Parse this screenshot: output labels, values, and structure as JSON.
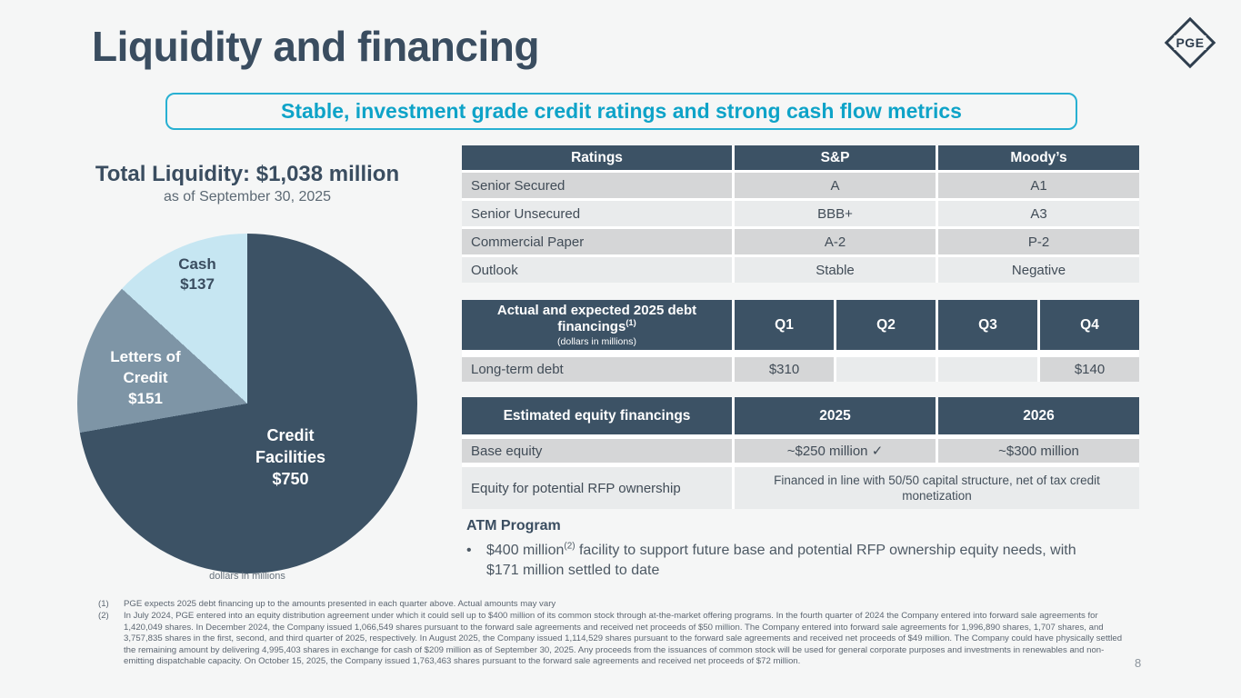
{
  "slide": {
    "title": "Liquidity and financing",
    "banner": "Stable, investment grade credit ratings and strong cash flow metrics",
    "logo_text": "PGE",
    "page_number": "8"
  },
  "liquidity": {
    "title": "Total Liquidity: $1,038 million",
    "subtitle": "as of September 30, 2025",
    "caption": "dollars in millions"
  },
  "chart_data": {
    "type": "pie",
    "title": "Total Liquidity: $1,038 million",
    "units": "dollars in millions",
    "total": 1038,
    "slices": [
      {
        "label": "Credit Facilities",
        "value": 750,
        "display": "$750",
        "label_lines": [
          "Credit",
          "Facilities"
        ],
        "color": "#3c5265"
      },
      {
        "label": "Letters of Credit",
        "value": 151,
        "display": "$151",
        "label_lines": [
          "Letters of",
          "Credit"
        ],
        "color": "#7e95a6"
      },
      {
        "label": "Cash",
        "value": 137,
        "display": "$137",
        "label_lines": [
          "Cash"
        ],
        "color": "#c6e6f2"
      }
    ]
  },
  "ratings_table": {
    "headers": [
      "Ratings",
      "S&P",
      "Moody’s"
    ],
    "rows": [
      [
        "Senior Secured",
        "A",
        "A1"
      ],
      [
        "Senior Unsecured",
        "BBB+",
        "A3"
      ],
      [
        "Commercial Paper",
        "A-2",
        "P-2"
      ],
      [
        "Outlook",
        "Stable",
        "Negative"
      ]
    ]
  },
  "debt_table": {
    "title": "Actual and expected 2025 debt financings",
    "title_sup": "(1)",
    "subtitle": "(dollars in millions)",
    "quarters": [
      "Q1",
      "Q2",
      "Q3",
      "Q4"
    ],
    "row_label": "Long-term debt",
    "values": [
      "$310",
      "",
      "",
      "$140"
    ]
  },
  "equity_table": {
    "headers": [
      "Estimated equity financings",
      "2025",
      "2026"
    ],
    "base_label": "Base equity",
    "base_2025": "~$250 million ✓",
    "base_2026": "~$300 million",
    "rfp_label": "Equity for potential RFP ownership",
    "rfp_text": "Financed in line with 50/50 capital structure, net of tax credit monetization"
  },
  "atm": {
    "title": "ATM Program",
    "bullet_marker": "•",
    "text_pre": "$400 million",
    "text_sup": "(2)",
    "text_post": " facility to support future base and potential RFP ownership equity needs, with $171 million settled to date"
  },
  "footnotes": [
    {
      "num": "(1)",
      "text": "PGE expects 2025 debt financing up to the amounts presented in each quarter above. Actual amounts may vary"
    },
    {
      "num": "(2)",
      "text": "In July 2024, PGE entered into an equity distribution agreement under which it could sell up to $400 million of its common stock through at-the-market offering programs. In the fourth quarter of 2024 the Company entered into forward sale agreements for 1,420,049 shares. In December 2024, the Company issued 1,066,549 shares pursuant to the forward sale agreements and received net proceeds of $50 million. The Company entered into forward sale agreements for 1,996,890 shares, 1,707 shares, and 3,757,835 shares in the first, second, and third quarter of 2025, respectively. In August 2025, the Company issued 1,114,529 shares pursuant to the forward sale agreements and received net proceeds of $49 million. The Company could have physically settled the remaining amount by delivering 4,995,403 shares in exchange for cash of $209 million as of September 30, 2025. Any proceeds from the issuances of common stock will be used for general corporate purposes and investments in renewables and non-emitting dispatchable capacity. On October 15, 2025, the Company issued 1,763,463 shares pursuant to the forward sale agreements and received net proceeds of $72 million."
    }
  ]
}
